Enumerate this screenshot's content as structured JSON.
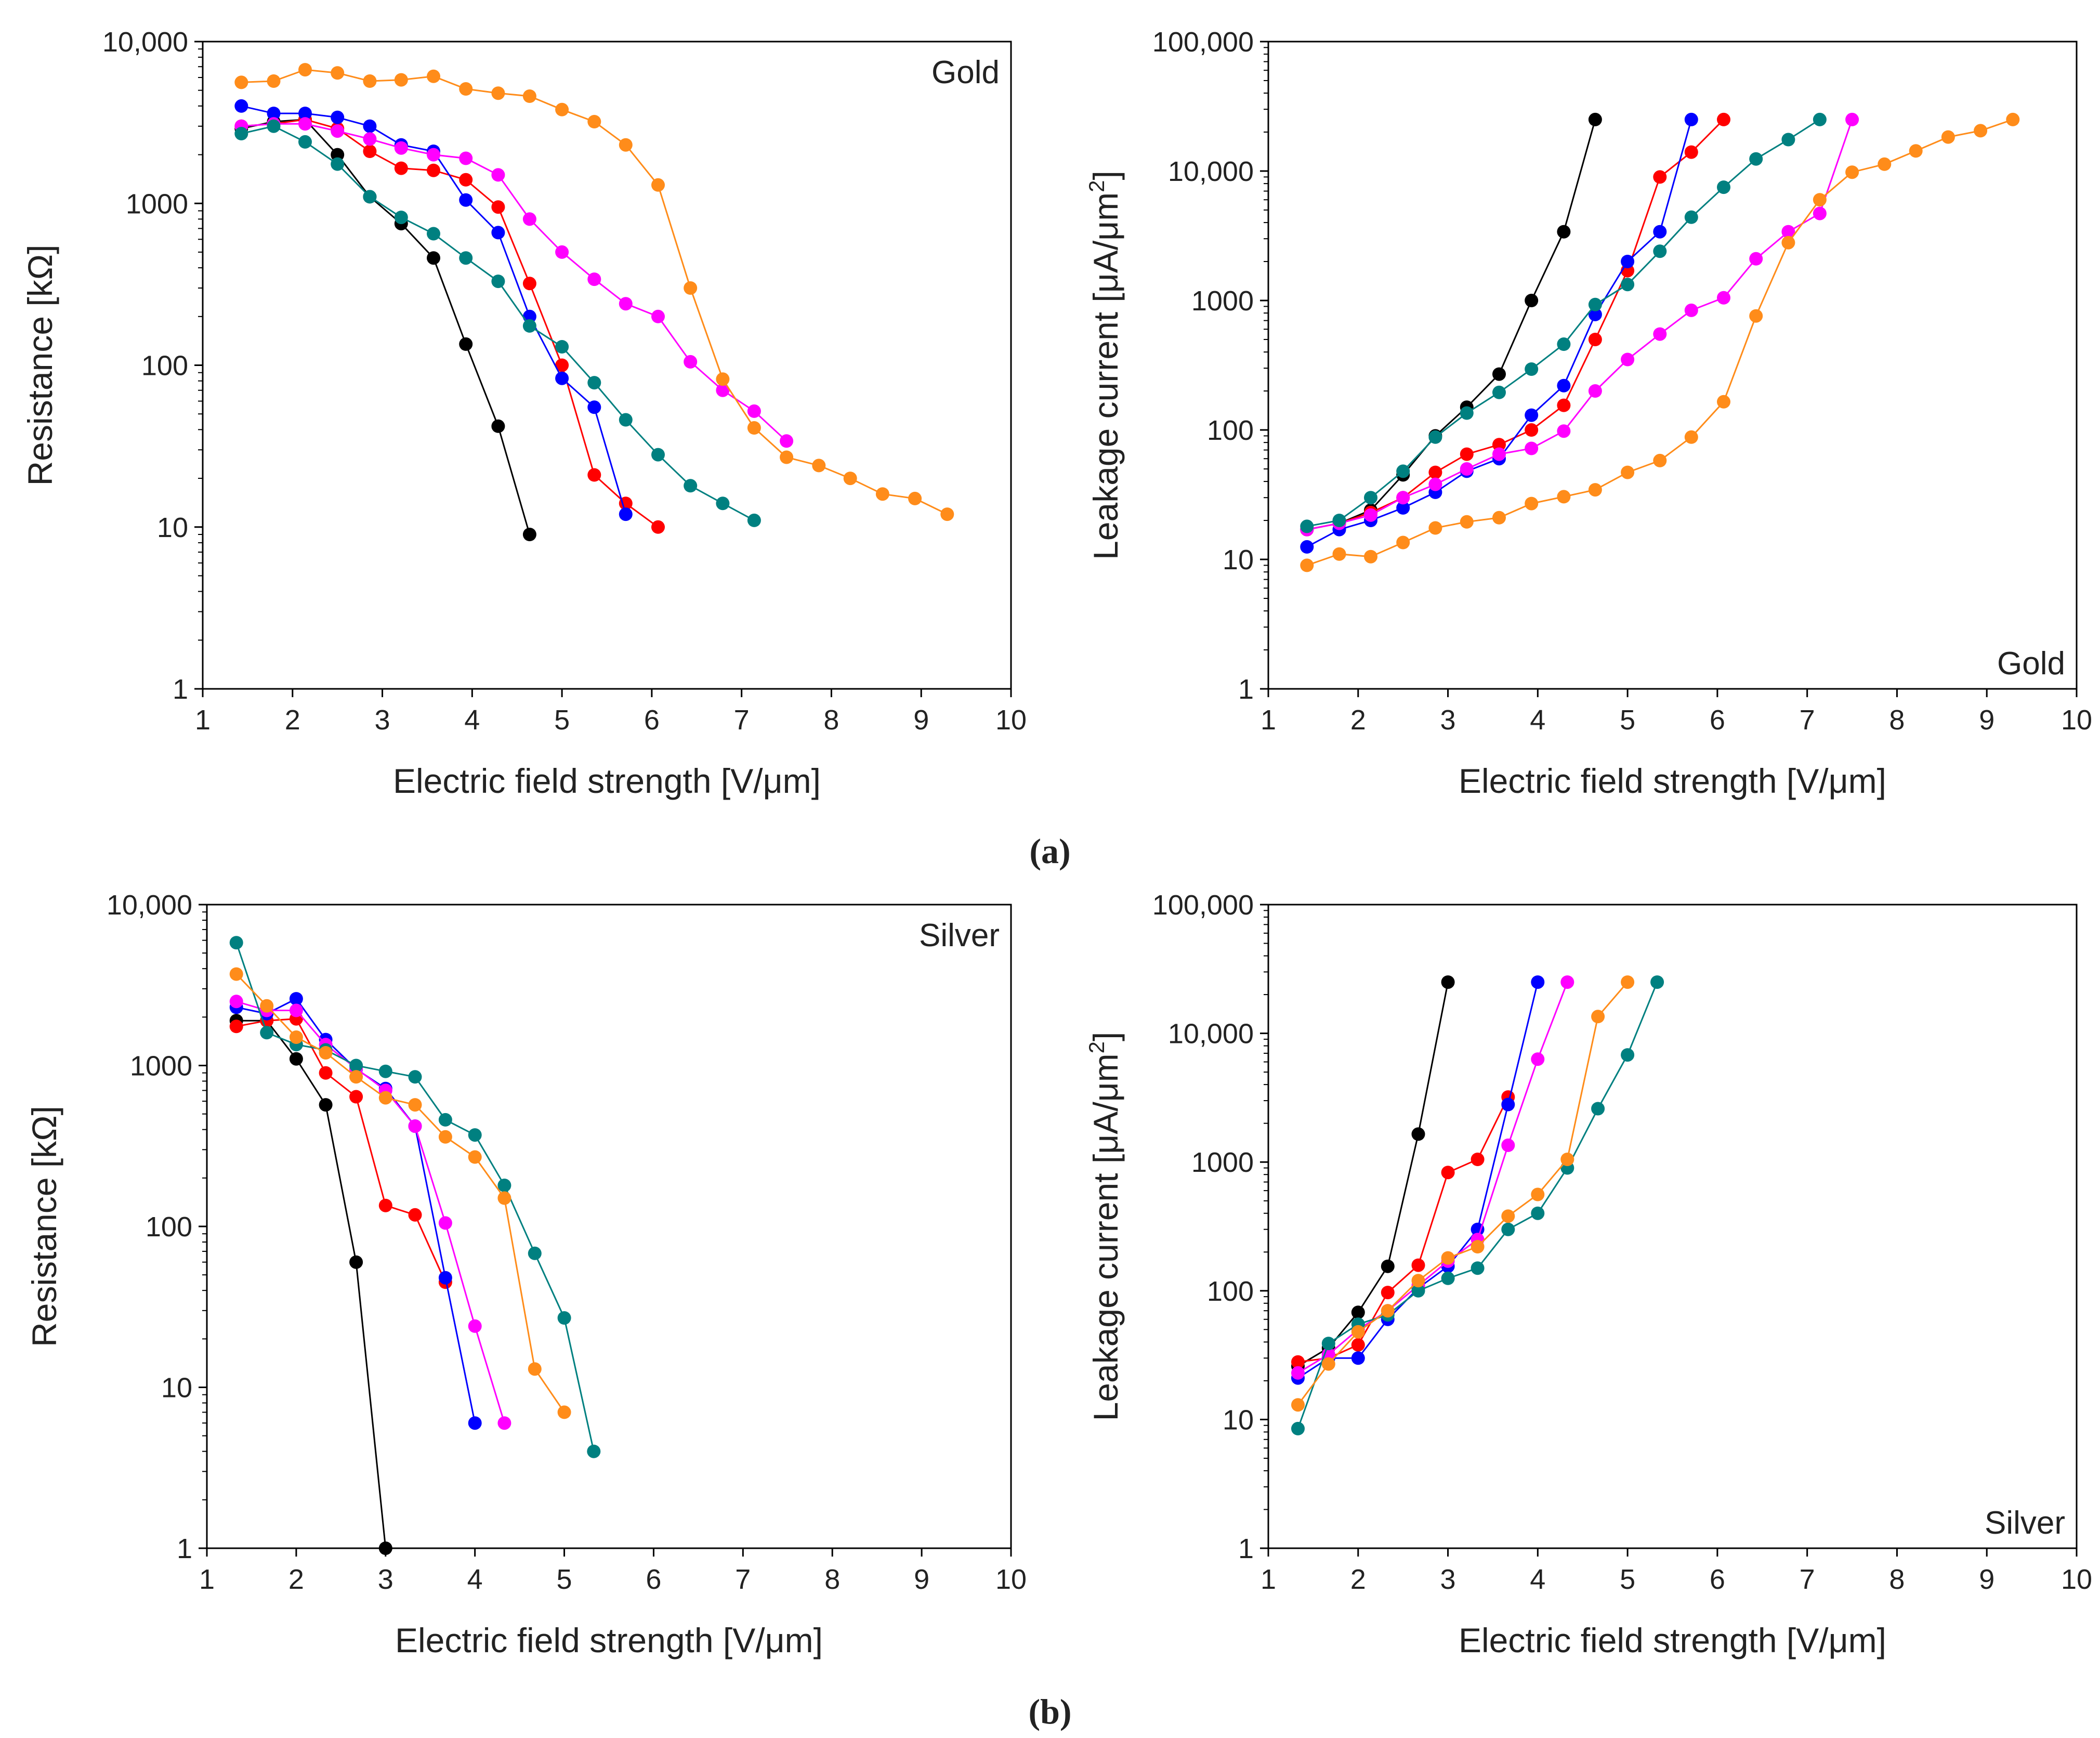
{
  "figure": {
    "caption_a": "(a)",
    "caption_b": "(b)"
  },
  "colors": {
    "black": "#000000",
    "red": "#ff0000",
    "blue": "#0000ff",
    "magenta": "#ff00ff",
    "teal": "#008080",
    "orange": "#ff8c1a"
  },
  "chart_data": [
    {
      "id": "gold-resistance",
      "type": "line",
      "panel_label": "Gold",
      "label_corner": "top-right",
      "xlabel": "Electric field strength [V/μm]",
      "ylabel": "Resistance [kΩ]",
      "yscale": "log",
      "xlim": [
        1,
        10
      ],
      "ylim": [
        1,
        10000
      ],
      "xticks": [
        "1",
        "2",
        "3",
        "4",
        "5",
        "6",
        "7",
        "8",
        "9",
        "10"
      ],
      "yticks": [
        "1",
        "10",
        "100",
        "1000",
        "10,000"
      ],
      "series": [
        {
          "name": "black",
          "color": "black",
          "x": [
            1.43,
            1.79,
            2.14,
            2.5,
            2.86,
            3.21,
            3.57,
            3.93,
            4.29,
            4.64
          ],
          "y": [
            2900,
            3200,
            3300,
            2000,
            1100,
            750,
            460,
            135,
            42,
            9
          ]
        },
        {
          "name": "red",
          "color": "red",
          "x": [
            1.43,
            1.79,
            2.14,
            2.5,
            2.86,
            3.21,
            3.57,
            3.93,
            4.29,
            4.64,
            5.0,
            5.36,
            5.71,
            6.07
          ],
          "y": [
            3000,
            3100,
            3300,
            2900,
            2100,
            1650,
            1600,
            1400,
            950,
            320,
            100,
            21,
            14,
            10
          ]
        },
        {
          "name": "blue",
          "color": "blue",
          "x": [
            1.43,
            1.79,
            2.14,
            2.5,
            2.86,
            3.21,
            3.57,
            3.93,
            4.29,
            4.64,
            5.0,
            5.36,
            5.71
          ],
          "y": [
            4000,
            3600,
            3600,
            3400,
            3000,
            2300,
            2100,
            1050,
            660,
            200,
            83,
            55,
            12
          ]
        },
        {
          "name": "magenta",
          "color": "magenta",
          "x": [
            1.43,
            1.79,
            2.14,
            2.5,
            2.86,
            3.21,
            3.57,
            3.93,
            4.29,
            4.64,
            5.0,
            5.36,
            5.71,
            6.07,
            6.43,
            6.79,
            7.14,
            7.5
          ],
          "y": [
            3000,
            3100,
            3100,
            2800,
            2500,
            2200,
            2000,
            1900,
            1500,
            800,
            500,
            340,
            240,
            200,
            105,
            70,
            52,
            34
          ]
        },
        {
          "name": "teal",
          "color": "teal",
          "x": [
            1.43,
            1.79,
            2.14,
            2.5,
            2.86,
            3.21,
            3.57,
            3.93,
            4.29,
            4.64,
            5.0,
            5.36,
            5.71,
            6.07,
            6.43,
            6.79,
            7.14
          ],
          "y": [
            2700,
            3000,
            2400,
            1750,
            1100,
            820,
            650,
            460,
            330,
            175,
            130,
            78,
            46,
            28,
            18,
            14,
            11
          ]
        },
        {
          "name": "orange",
          "color": "orange",
          "x": [
            1.43,
            1.79,
            2.14,
            2.5,
            2.86,
            3.21,
            3.57,
            3.93,
            4.29,
            4.64,
            5.0,
            5.36,
            5.71,
            6.07,
            6.43,
            6.79,
            7.14,
            7.5,
            7.86,
            8.21,
            8.57,
            8.93,
            9.29
          ],
          "y": [
            5600,
            5700,
            6700,
            6400,
            5700,
            5800,
            6100,
            5100,
            4800,
            4600,
            3800,
            3200,
            2300,
            1300,
            300,
            82,
            41,
            27,
            24,
            20,
            16,
            15,
            12
          ]
        }
      ]
    },
    {
      "id": "gold-leakage",
      "type": "line",
      "panel_label": "Gold",
      "label_corner": "bottom-right",
      "xlabel": "Electric field strength [V/μm]",
      "ylabel": "Leakage current [μA/μm",
      "ylabel_sup": "2",
      "ylabel_end": "]",
      "yscale": "log",
      "xlim": [
        1,
        10
      ],
      "ylim": [
        1,
        100000
      ],
      "xticks": [
        "1",
        "2",
        "3",
        "4",
        "5",
        "6",
        "7",
        "8",
        "9",
        "10"
      ],
      "yticks": [
        "1",
        "10",
        "100",
        "1000",
        "10,000",
        "100,000"
      ],
      "series": [
        {
          "name": "black",
          "color": "black",
          "x": [
            1.43,
            1.79,
            2.14,
            2.5,
            2.86,
            3.21,
            3.57,
            3.93,
            4.29,
            4.64
          ],
          "y": [
            17,
            19,
            24,
            45,
            90,
            150,
            270,
            1000,
            3400,
            25000
          ]
        },
        {
          "name": "red",
          "color": "red",
          "x": [
            1.43,
            1.79,
            2.14,
            2.5,
            2.86,
            3.21,
            3.57,
            3.93,
            4.29,
            4.64,
            5.0,
            5.36,
            5.71,
            6.07
          ],
          "y": [
            17,
            19,
            23,
            30,
            47,
            65,
            77,
            100,
            155,
            500,
            1700,
            9000,
            14000,
            25000
          ]
        },
        {
          "name": "blue",
          "color": "blue",
          "x": [
            1.43,
            1.79,
            2.14,
            2.5,
            2.86,
            3.21,
            3.57,
            3.93,
            4.29,
            4.64,
            5.0,
            5.36,
            5.71
          ],
          "y": [
            12.5,
            17,
            20,
            25,
            33,
            48,
            60,
            130,
            220,
            780,
            2000,
            3400,
            25000
          ]
        },
        {
          "name": "magenta",
          "color": "magenta",
          "x": [
            1.43,
            1.79,
            2.14,
            2.5,
            2.86,
            3.21,
            3.57,
            3.93,
            4.29,
            4.64,
            5.0,
            5.36,
            5.71,
            6.07,
            6.43,
            6.79,
            7.14,
            7.5
          ],
          "y": [
            17,
            19,
            22,
            30,
            38,
            50,
            65,
            72,
            98,
            200,
            350,
            550,
            840,
            1050,
            2100,
            3400,
            4700,
            25000
          ]
        },
        {
          "name": "teal",
          "color": "teal",
          "x": [
            1.43,
            1.79,
            2.14,
            2.5,
            2.86,
            3.21,
            3.57,
            3.93,
            4.29,
            4.64,
            5.0,
            5.36,
            5.71,
            6.07,
            6.43,
            6.79,
            7.14
          ],
          "y": [
            18,
            20,
            30,
            48,
            88,
            135,
            195,
            295,
            460,
            930,
            1330,
            2400,
            4400,
            7500,
            12400,
            17500,
            25000
          ]
        },
        {
          "name": "orange",
          "color": "orange",
          "x": [
            1.43,
            1.79,
            2.14,
            2.5,
            2.86,
            3.21,
            3.57,
            3.93,
            4.29,
            4.64,
            5.0,
            5.36,
            5.71,
            6.07,
            6.43,
            6.79,
            7.14,
            7.5,
            7.86,
            8.21,
            8.57,
            8.93,
            9.29
          ],
          "y": [
            9,
            11,
            10.5,
            13.5,
            17.5,
            19.5,
            21,
            27,
            30.5,
            34.5,
            47,
            58,
            88,
            165,
            760,
            2800,
            6000,
            9800,
            11300,
            14300,
            18300,
            20500,
            25000
          ]
        }
      ]
    },
    {
      "id": "silver-resistance",
      "type": "line",
      "panel_label": "Silver",
      "label_corner": "top-right",
      "xlabel": "Electric field strength [V/μm]",
      "ylabel": "Resistance [kΩ]",
      "yscale": "log",
      "xlim": [
        1,
        10
      ],
      "ylim": [
        1,
        10000
      ],
      "xticks": [
        "1",
        "2",
        "3",
        "4",
        "5",
        "6",
        "7",
        "8",
        "9",
        "10"
      ],
      "yticks": [
        "1",
        "10",
        "100",
        "1000",
        "10,000"
      ],
      "series": [
        {
          "name": "black",
          "color": "black",
          "x": [
            1.33,
            1.67,
            2.0,
            2.33,
            2.67,
            3.0
          ],
          "y": [
            1900,
            1900,
            1100,
            570,
            60,
            1
          ]
        },
        {
          "name": "red",
          "color": "red",
          "x": [
            1.33,
            1.67,
            2.0,
            2.33,
            2.67,
            3.0,
            3.33,
            3.67
          ],
          "y": [
            1750,
            1900,
            1950,
            900,
            640,
            135,
            118,
            45
          ]
        },
        {
          "name": "blue",
          "color": "blue",
          "x": [
            1.33,
            1.67,
            2.0,
            2.33,
            2.67,
            3.0,
            3.33,
            3.67,
            4.0
          ],
          "y": [
            2300,
            2100,
            2600,
            1450,
            950,
            720,
            420,
            48,
            6
          ]
        },
        {
          "name": "magenta",
          "color": "magenta",
          "x": [
            1.33,
            1.67,
            2.0,
            2.33,
            2.67,
            3.0,
            3.33,
            3.67,
            4.0,
            4.33
          ],
          "y": [
            2500,
            2200,
            2200,
            1350,
            960,
            700,
            420,
            105,
            24,
            6
          ]
        },
        {
          "name": "teal",
          "color": "teal",
          "x": [
            1.33,
            1.67,
            2.0,
            2.33,
            2.67,
            3.0,
            3.33,
            3.67,
            4.0,
            4.33,
            4.67,
            5.0,
            5.33
          ],
          "y": [
            5800,
            1600,
            1350,
            1250,
            1000,
            920,
            850,
            460,
            370,
            180,
            68,
            27,
            4
          ]
        },
        {
          "name": "orange",
          "color": "orange",
          "x": [
            1.33,
            1.67,
            2.0,
            2.33,
            2.67,
            3.0,
            3.33,
            3.67,
            4.0,
            4.33,
            4.67,
            5.0
          ],
          "y": [
            3700,
            2350,
            1500,
            1200,
            850,
            630,
            570,
            360,
            270,
            150,
            13,
            7
          ]
        }
      ]
    },
    {
      "id": "silver-leakage",
      "type": "line",
      "panel_label": "Silver",
      "label_corner": "bottom-right",
      "xlabel": "Electric field strength [V/μm]",
      "ylabel": "Leakage current [μA/μm",
      "ylabel_sup": "2",
      "ylabel_end": "]",
      "yscale": "log",
      "xlim": [
        1,
        10
      ],
      "ylim": [
        1,
        100000
      ],
      "xticks": [
        "1",
        "2",
        "3",
        "4",
        "5",
        "6",
        "7",
        "8",
        "9",
        "10"
      ],
      "yticks": [
        "1",
        "10",
        "100",
        "1000",
        "10,000",
        "100,000"
      ],
      "series": [
        {
          "name": "black",
          "color": "black",
          "x": [
            1.33,
            1.67,
            2.0,
            2.33,
            2.67,
            3.0
          ],
          "y": [
            26,
            36,
            68,
            155,
            1650,
            25000
          ]
        },
        {
          "name": "red",
          "color": "red",
          "x": [
            1.33,
            1.67,
            2.0,
            2.33,
            2.67,
            3.0,
            3.33,
            3.67
          ],
          "y": [
            28,
            30,
            38,
            97,
            158,
            830,
            1050,
            3200
          ]
        },
        {
          "name": "blue",
          "color": "blue",
          "x": [
            1.33,
            1.67,
            2.0,
            2.33,
            2.67,
            3.0,
            3.33,
            3.67,
            4.0
          ],
          "y": [
            21,
            30,
            30,
            60,
            105,
            155,
            300,
            2800,
            25000
          ]
        },
        {
          "name": "magenta",
          "color": "magenta",
          "x": [
            1.33,
            1.67,
            2.0,
            2.33,
            2.67,
            3.0,
            3.33,
            3.67,
            4.0,
            4.33
          ],
          "y": [
            23,
            32,
            50,
            70,
            110,
            170,
            250,
            1350,
            6300,
            25000
          ]
        },
        {
          "name": "teal",
          "color": "teal",
          "x": [
            1.33,
            1.67,
            2.0,
            2.33,
            2.67,
            3.0,
            3.33,
            3.67,
            4.0,
            4.33,
            4.67,
            5.0,
            5.33
          ],
          "y": [
            8.5,
            39,
            55,
            65,
            100,
            125,
            150,
            300,
            400,
            900,
            2600,
            6800,
            25000
          ]
        },
        {
          "name": "orange",
          "color": "orange",
          "x": [
            1.33,
            1.67,
            2.0,
            2.33,
            2.67,
            3.0,
            3.33,
            3.67,
            4.0,
            4.33,
            4.67,
            5.0
          ],
          "y": [
            13,
            27,
            48,
            70,
            120,
            180,
            220,
            380,
            560,
            1050,
            13500,
            25000
          ]
        }
      ]
    }
  ]
}
